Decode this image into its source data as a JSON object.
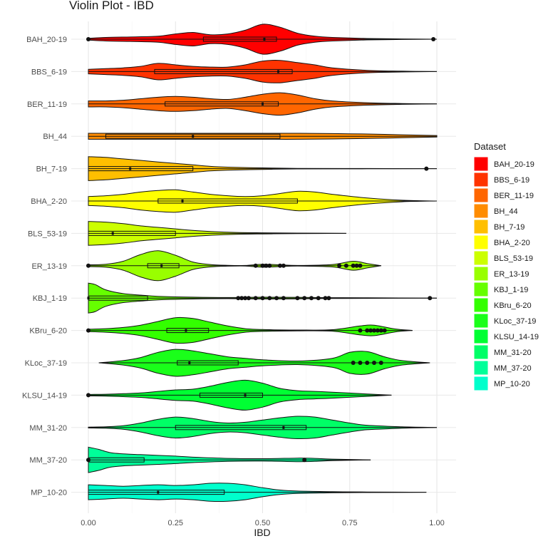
{
  "chart_data": {
    "type": "violin",
    "title": "Violin Plot - IBD",
    "xlabel": "IBD",
    "ylabel": "",
    "xlim": [
      0,
      1
    ],
    "x_ticks": [
      "0.00",
      "0.25",
      "0.50",
      "0.75",
      "1.00"
    ],
    "x_tick_values": [
      0,
      0.25,
      0.5,
      0.75,
      1.0
    ],
    "grid": true,
    "orientation": "horizontal",
    "legend": {
      "title": "Dataset",
      "placement": "right"
    },
    "categories": [
      "BAH_20-19",
      "BBS_6-19",
      "BER_11-19",
      "BH_44",
      "BH_7-19",
      "BHA_2-20",
      "BLS_53-19",
      "ER_13-19",
      "KBJ_1-19",
      "KBru_6-20",
      "KLoc_37-19",
      "KLSU_14-19",
      "MM_31-20",
      "MM_37-20",
      "MP_10-20"
    ],
    "series": [
      {
        "name": "BAH_20-19",
        "color": "#ff0000",
        "min": 0.0,
        "max": 1.0,
        "q1": 0.33,
        "median": 0.505,
        "q3": 0.54,
        "whisker_low": 0.0,
        "whisker_high": 0.8,
        "outliers": [
          0.0,
          0.99
        ],
        "density": [
          [
            0.0,
            0.06
          ],
          [
            0.05,
            0.12
          ],
          [
            0.12,
            0.15
          ],
          [
            0.2,
            0.2
          ],
          [
            0.25,
            0.35
          ],
          [
            0.3,
            0.45
          ],
          [
            0.35,
            0.3
          ],
          [
            0.4,
            0.35
          ],
          [
            0.45,
            0.6
          ],
          [
            0.5,
            1.0
          ],
          [
            0.55,
            0.8
          ],
          [
            0.6,
            0.4
          ],
          [
            0.65,
            0.2
          ],
          [
            0.7,
            0.12
          ],
          [
            0.8,
            0.05
          ],
          [
            0.9,
            0.02
          ],
          [
            1.0,
            0.0
          ]
        ]
      },
      {
        "name": "BBS_6-19",
        "color": "#ff3300",
        "min": 0.0,
        "max": 1.0,
        "q1": 0.19,
        "median": 0.545,
        "q3": 0.585,
        "whisker_low": 0.0,
        "whisker_high": 1.0,
        "outliers": [],
        "density": [
          [
            0.0,
            0.15
          ],
          [
            0.05,
            0.2
          ],
          [
            0.1,
            0.25
          ],
          [
            0.15,
            0.35
          ],
          [
            0.2,
            0.55
          ],
          [
            0.25,
            0.45
          ],
          [
            0.3,
            0.35
          ],
          [
            0.35,
            0.3
          ],
          [
            0.4,
            0.3
          ],
          [
            0.45,
            0.45
          ],
          [
            0.5,
            0.7
          ],
          [
            0.55,
            0.75
          ],
          [
            0.6,
            0.6
          ],
          [
            0.65,
            0.45
          ],
          [
            0.7,
            0.25
          ],
          [
            0.8,
            0.08
          ],
          [
            0.9,
            0.03
          ],
          [
            1.0,
            0.0
          ]
        ]
      },
      {
        "name": "BER_11-19",
        "color": "#ff6600",
        "min": 0.0,
        "max": 1.0,
        "q1": 0.22,
        "median": 0.5,
        "q3": 0.545,
        "whisker_low": 0.0,
        "whisker_high": 1.0,
        "outliers": [],
        "density": [
          [
            0.0,
            0.2
          ],
          [
            0.05,
            0.2
          ],
          [
            0.1,
            0.25
          ],
          [
            0.15,
            0.35
          ],
          [
            0.2,
            0.45
          ],
          [
            0.25,
            0.5
          ],
          [
            0.3,
            0.45
          ],
          [
            0.35,
            0.35
          ],
          [
            0.4,
            0.3
          ],
          [
            0.45,
            0.45
          ],
          [
            0.5,
            0.65
          ],
          [
            0.55,
            0.75
          ],
          [
            0.6,
            0.6
          ],
          [
            0.65,
            0.35
          ],
          [
            0.7,
            0.2
          ],
          [
            0.8,
            0.08
          ],
          [
            0.9,
            0.03
          ],
          [
            1.0,
            0.0
          ]
        ]
      },
      {
        "name": "BH_44",
        "color": "#ff8c00",
        "min": 0.0,
        "max": 1.0,
        "q1": 0.05,
        "median": 0.3,
        "q3": 0.55,
        "whisker_low": 0.0,
        "whisker_high": 1.0,
        "outliers": [],
        "density": [
          [
            0.0,
            0.2
          ],
          [
            0.1,
            0.2
          ],
          [
            0.2,
            0.2
          ],
          [
            0.3,
            0.2
          ],
          [
            0.4,
            0.2
          ],
          [
            0.5,
            0.2
          ],
          [
            0.6,
            0.2
          ],
          [
            0.7,
            0.18
          ],
          [
            0.8,
            0.15
          ],
          [
            0.9,
            0.1
          ],
          [
            1.0,
            0.05
          ]
        ]
      },
      {
        "name": "BH_7-19",
        "color": "#ffbf00",
        "min": 0.0,
        "max": 1.0,
        "q1": 0.0,
        "median": 0.12,
        "q3": 0.3,
        "whisker_low": 0.0,
        "whisker_high": 0.52,
        "outliers": [
          0.97
        ],
        "density": [
          [
            0.0,
            0.8
          ],
          [
            0.05,
            0.75
          ],
          [
            0.1,
            0.65
          ],
          [
            0.15,
            0.55
          ],
          [
            0.2,
            0.45
          ],
          [
            0.25,
            0.35
          ],
          [
            0.3,
            0.25
          ],
          [
            0.35,
            0.15
          ],
          [
            0.4,
            0.1
          ],
          [
            0.5,
            0.05
          ],
          [
            0.6,
            0.02
          ],
          [
            0.8,
            0.01
          ],
          [
            1.0,
            0.0
          ]
        ]
      },
      {
        "name": "BHA_2-20",
        "color": "#ffff00",
        "min": 0.0,
        "max": 1.0,
        "q1": 0.2,
        "median": 0.27,
        "q3": 0.6,
        "whisker_low": 0.0,
        "whisker_high": 1.0,
        "outliers": [],
        "density": [
          [
            0.0,
            0.3
          ],
          [
            0.05,
            0.35
          ],
          [
            0.1,
            0.45
          ],
          [
            0.15,
            0.6
          ],
          [
            0.2,
            0.7
          ],
          [
            0.25,
            0.75
          ],
          [
            0.3,
            0.6
          ],
          [
            0.35,
            0.45
          ],
          [
            0.4,
            0.35
          ],
          [
            0.45,
            0.3
          ],
          [
            0.5,
            0.35
          ],
          [
            0.55,
            0.5
          ],
          [
            0.6,
            0.65
          ],
          [
            0.65,
            0.6
          ],
          [
            0.7,
            0.45
          ],
          [
            0.8,
            0.2
          ],
          [
            0.9,
            0.05
          ],
          [
            1.0,
            0.0
          ]
        ]
      },
      {
        "name": "BLS_53-19",
        "color": "#ccff00",
        "min": 0.0,
        "max": 0.74,
        "q1": 0.0,
        "median": 0.07,
        "q3": 0.25,
        "whisker_low": 0.0,
        "whisker_high": 0.74,
        "outliers": [],
        "density": [
          [
            0.0,
            0.8
          ],
          [
            0.05,
            0.75
          ],
          [
            0.1,
            0.65
          ],
          [
            0.15,
            0.5
          ],
          [
            0.2,
            0.4
          ],
          [
            0.25,
            0.3
          ],
          [
            0.3,
            0.2
          ],
          [
            0.4,
            0.08
          ],
          [
            0.5,
            0.04
          ],
          [
            0.6,
            0.02
          ],
          [
            0.74,
            0.0
          ]
        ]
      },
      {
        "name": "ER_13-19",
        "color": "#99ff00",
        "min": 0.0,
        "max": 0.84,
        "q1": 0.17,
        "median": 0.21,
        "q3": 0.26,
        "whisker_low": 0.0,
        "whisker_high": 0.37,
        "outliers": [
          0.0,
          0.48,
          0.5,
          0.51,
          0.52,
          0.55,
          0.56,
          0.72,
          0.74,
          0.76,
          0.77,
          0.78
        ],
        "density": [
          [
            0.0,
            0.06
          ],
          [
            0.05,
            0.1
          ],
          [
            0.1,
            0.3
          ],
          [
            0.15,
            0.75
          ],
          [
            0.2,
            1.0
          ],
          [
            0.25,
            0.7
          ],
          [
            0.3,
            0.25
          ],
          [
            0.35,
            0.08
          ],
          [
            0.4,
            0.03
          ],
          [
            0.45,
            0.02
          ],
          [
            0.5,
            0.1
          ],
          [
            0.55,
            0.06
          ],
          [
            0.6,
            0.02
          ],
          [
            0.7,
            0.08
          ],
          [
            0.76,
            0.3
          ],
          [
            0.8,
            0.15
          ],
          [
            0.84,
            0.0
          ]
        ]
      },
      {
        "name": "KBJ_1-19",
        "color": "#66ff00",
        "min": 0.0,
        "max": 1.0,
        "q1": 0.0,
        "median": 0.0,
        "q3": 0.17,
        "whisker_low": 0.0,
        "whisker_high": 0.42,
        "outliers": [
          0.43,
          0.44,
          0.45,
          0.46,
          0.48,
          0.5,
          0.52,
          0.54,
          0.56,
          0.6,
          0.62,
          0.64,
          0.66,
          0.68,
          0.69,
          0.98
        ],
        "density": [
          [
            0.0,
            1.0
          ],
          [
            0.02,
            0.9
          ],
          [
            0.05,
            0.55
          ],
          [
            0.1,
            0.3
          ],
          [
            0.15,
            0.2
          ],
          [
            0.2,
            0.12
          ],
          [
            0.3,
            0.06
          ],
          [
            0.4,
            0.04
          ],
          [
            0.5,
            0.06
          ],
          [
            0.6,
            0.05
          ],
          [
            0.7,
            0.03
          ],
          [
            0.8,
            0.02
          ],
          [
            1.0,
            0.0
          ]
        ]
      },
      {
        "name": "KBru_6-20",
        "color": "#33ff00",
        "min": 0.0,
        "max": 0.93,
        "q1": 0.225,
        "median": 0.28,
        "q3": 0.345,
        "whisker_low": 0.0,
        "whisker_high": 0.52,
        "outliers": [
          0.0,
          0.78,
          0.8,
          0.81,
          0.82,
          0.83,
          0.84,
          0.85
        ],
        "density": [
          [
            0.0,
            0.08
          ],
          [
            0.05,
            0.12
          ],
          [
            0.1,
            0.2
          ],
          [
            0.15,
            0.35
          ],
          [
            0.2,
            0.6
          ],
          [
            0.25,
            0.85
          ],
          [
            0.3,
            0.8
          ],
          [
            0.35,
            0.55
          ],
          [
            0.4,
            0.3
          ],
          [
            0.45,
            0.12
          ],
          [
            0.5,
            0.06
          ],
          [
            0.6,
            0.03
          ],
          [
            0.7,
            0.05
          ],
          [
            0.78,
            0.3
          ],
          [
            0.82,
            0.35
          ],
          [
            0.88,
            0.1
          ],
          [
            0.93,
            0.0
          ]
        ]
      },
      {
        "name": "KLoc_37-19",
        "color": "#1aff1a",
        "min": 0.03,
        "max": 0.98,
        "q1": 0.255,
        "median": 0.29,
        "q3": 0.43,
        "whisker_low": 0.2,
        "whisker_high": 0.64,
        "outliers": [
          0.76,
          0.78,
          0.8,
          0.82,
          0.84
        ],
        "density": [
          [
            0.03,
            0.0
          ],
          [
            0.1,
            0.15
          ],
          [
            0.15,
            0.35
          ],
          [
            0.2,
            0.7
          ],
          [
            0.25,
            0.9
          ],
          [
            0.3,
            0.8
          ],
          [
            0.35,
            0.6
          ],
          [
            0.4,
            0.4
          ],
          [
            0.45,
            0.3
          ],
          [
            0.5,
            0.2
          ],
          [
            0.6,
            0.12
          ],
          [
            0.7,
            0.3
          ],
          [
            0.75,
            0.7
          ],
          [
            0.8,
            0.75
          ],
          [
            0.85,
            0.4
          ],
          [
            0.9,
            0.15
          ],
          [
            0.98,
            0.0
          ]
        ]
      },
      {
        "name": "KLSU_14-19",
        "color": "#00ff33",
        "min": 0.0,
        "max": 0.87,
        "q1": 0.32,
        "median": 0.45,
        "q3": 0.5,
        "whisker_low": 0.0,
        "whisker_high": 0.87,
        "outliers": [
          0.0
        ],
        "density": [
          [
            0.0,
            0.05
          ],
          [
            0.05,
            0.06
          ],
          [
            0.1,
            0.1
          ],
          [
            0.15,
            0.15
          ],
          [
            0.2,
            0.25
          ],
          [
            0.25,
            0.35
          ],
          [
            0.3,
            0.4
          ],
          [
            0.35,
            0.6
          ],
          [
            0.4,
            0.85
          ],
          [
            0.45,
            1.0
          ],
          [
            0.5,
            0.8
          ],
          [
            0.55,
            0.45
          ],
          [
            0.6,
            0.3
          ],
          [
            0.65,
            0.25
          ],
          [
            0.7,
            0.2
          ],
          [
            0.8,
            0.08
          ],
          [
            0.87,
            0.0
          ]
        ]
      },
      {
        "name": "MM_31-20",
        "color": "#00ff66",
        "min": 0.0,
        "max": 1.0,
        "q1": 0.25,
        "median": 0.56,
        "q3": 0.625,
        "whisker_low": 0.0,
        "whisker_high": 1.0,
        "outliers": [],
        "density": [
          [
            0.0,
            0.03
          ],
          [
            0.05,
            0.05
          ],
          [
            0.1,
            0.12
          ],
          [
            0.15,
            0.3
          ],
          [
            0.2,
            0.55
          ],
          [
            0.25,
            0.7
          ],
          [
            0.3,
            0.6
          ],
          [
            0.35,
            0.4
          ],
          [
            0.4,
            0.3
          ],
          [
            0.45,
            0.35
          ],
          [
            0.5,
            0.5
          ],
          [
            0.55,
            0.65
          ],
          [
            0.6,
            0.75
          ],
          [
            0.65,
            0.7
          ],
          [
            0.7,
            0.5
          ],
          [
            0.75,
            0.3
          ],
          [
            0.8,
            0.15
          ],
          [
            0.9,
            0.05
          ],
          [
            1.0,
            0.0
          ]
        ]
      },
      {
        "name": "MM_37-20",
        "color": "#00ff99",
        "min": 0.0,
        "max": 0.81,
        "q1": 0.0,
        "median": 0.0,
        "q3": 0.16,
        "whisker_low": 0.0,
        "whisker_high": 0.33,
        "outliers": [
          0.0,
          0.62
        ],
        "density": [
          [
            0.0,
            0.85
          ],
          [
            0.03,
            0.7
          ],
          [
            0.06,
            0.5
          ],
          [
            0.1,
            0.4
          ],
          [
            0.15,
            0.35
          ],
          [
            0.2,
            0.3
          ],
          [
            0.25,
            0.25
          ],
          [
            0.3,
            0.18
          ],
          [
            0.4,
            0.1
          ],
          [
            0.5,
            0.08
          ],
          [
            0.6,
            0.12
          ],
          [
            0.65,
            0.1
          ],
          [
            0.7,
            0.05
          ],
          [
            0.81,
            0.0
          ]
        ]
      },
      {
        "name": "MP_10-20",
        "color": "#00ffcc",
        "min": 0.0,
        "max": 0.97,
        "q1": 0.0,
        "median": 0.2,
        "q3": 0.39,
        "whisker_low": 0.0,
        "whisker_high": 0.97,
        "outliers": [],
        "density": [
          [
            0.0,
            0.5
          ],
          [
            0.05,
            0.45
          ],
          [
            0.1,
            0.4
          ],
          [
            0.15,
            0.45
          ],
          [
            0.2,
            0.5
          ],
          [
            0.25,
            0.45
          ],
          [
            0.3,
            0.5
          ],
          [
            0.35,
            0.6
          ],
          [
            0.4,
            0.6
          ],
          [
            0.45,
            0.5
          ],
          [
            0.5,
            0.3
          ],
          [
            0.55,
            0.15
          ],
          [
            0.6,
            0.08
          ],
          [
            0.7,
            0.04
          ],
          [
            0.8,
            0.02
          ],
          [
            0.97,
            0.0
          ]
        ]
      }
    ]
  }
}
